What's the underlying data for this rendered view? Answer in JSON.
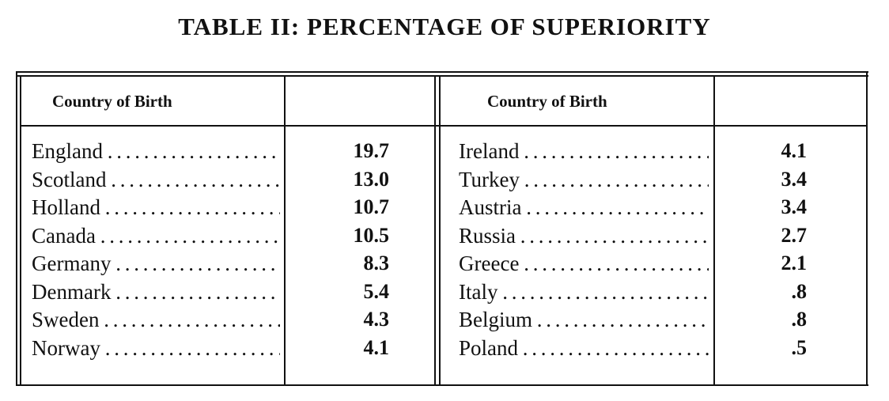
{
  "title": "TABLE II: PERCENTAGE OF SUPERIORITY",
  "table": {
    "columns": [
      {
        "header": "Country of Birth",
        "rows": [
          [
            "England",
            "19.7"
          ],
          [
            "Scotland",
            "13.0"
          ],
          [
            "Holland",
            "10.7"
          ],
          [
            "Canada",
            "10.5"
          ],
          [
            "Germany",
            "8.3"
          ],
          [
            "Denmark",
            "5.4"
          ],
          [
            "Sweden",
            "4.3"
          ],
          [
            "Norway",
            "4.1"
          ]
        ]
      },
      {
        "header": "Country of Birth",
        "rows": [
          [
            "Ireland",
            "4.1"
          ],
          [
            "Turkey",
            "3.4"
          ],
          [
            "Austria",
            "3.4"
          ],
          [
            "Russia",
            "2.7"
          ],
          [
            "Greece",
            "2.1"
          ],
          [
            "Italy",
            ".8"
          ],
          [
            "Belgium",
            ".8"
          ],
          [
            "Poland",
            ".5"
          ]
        ]
      }
    ]
  }
}
